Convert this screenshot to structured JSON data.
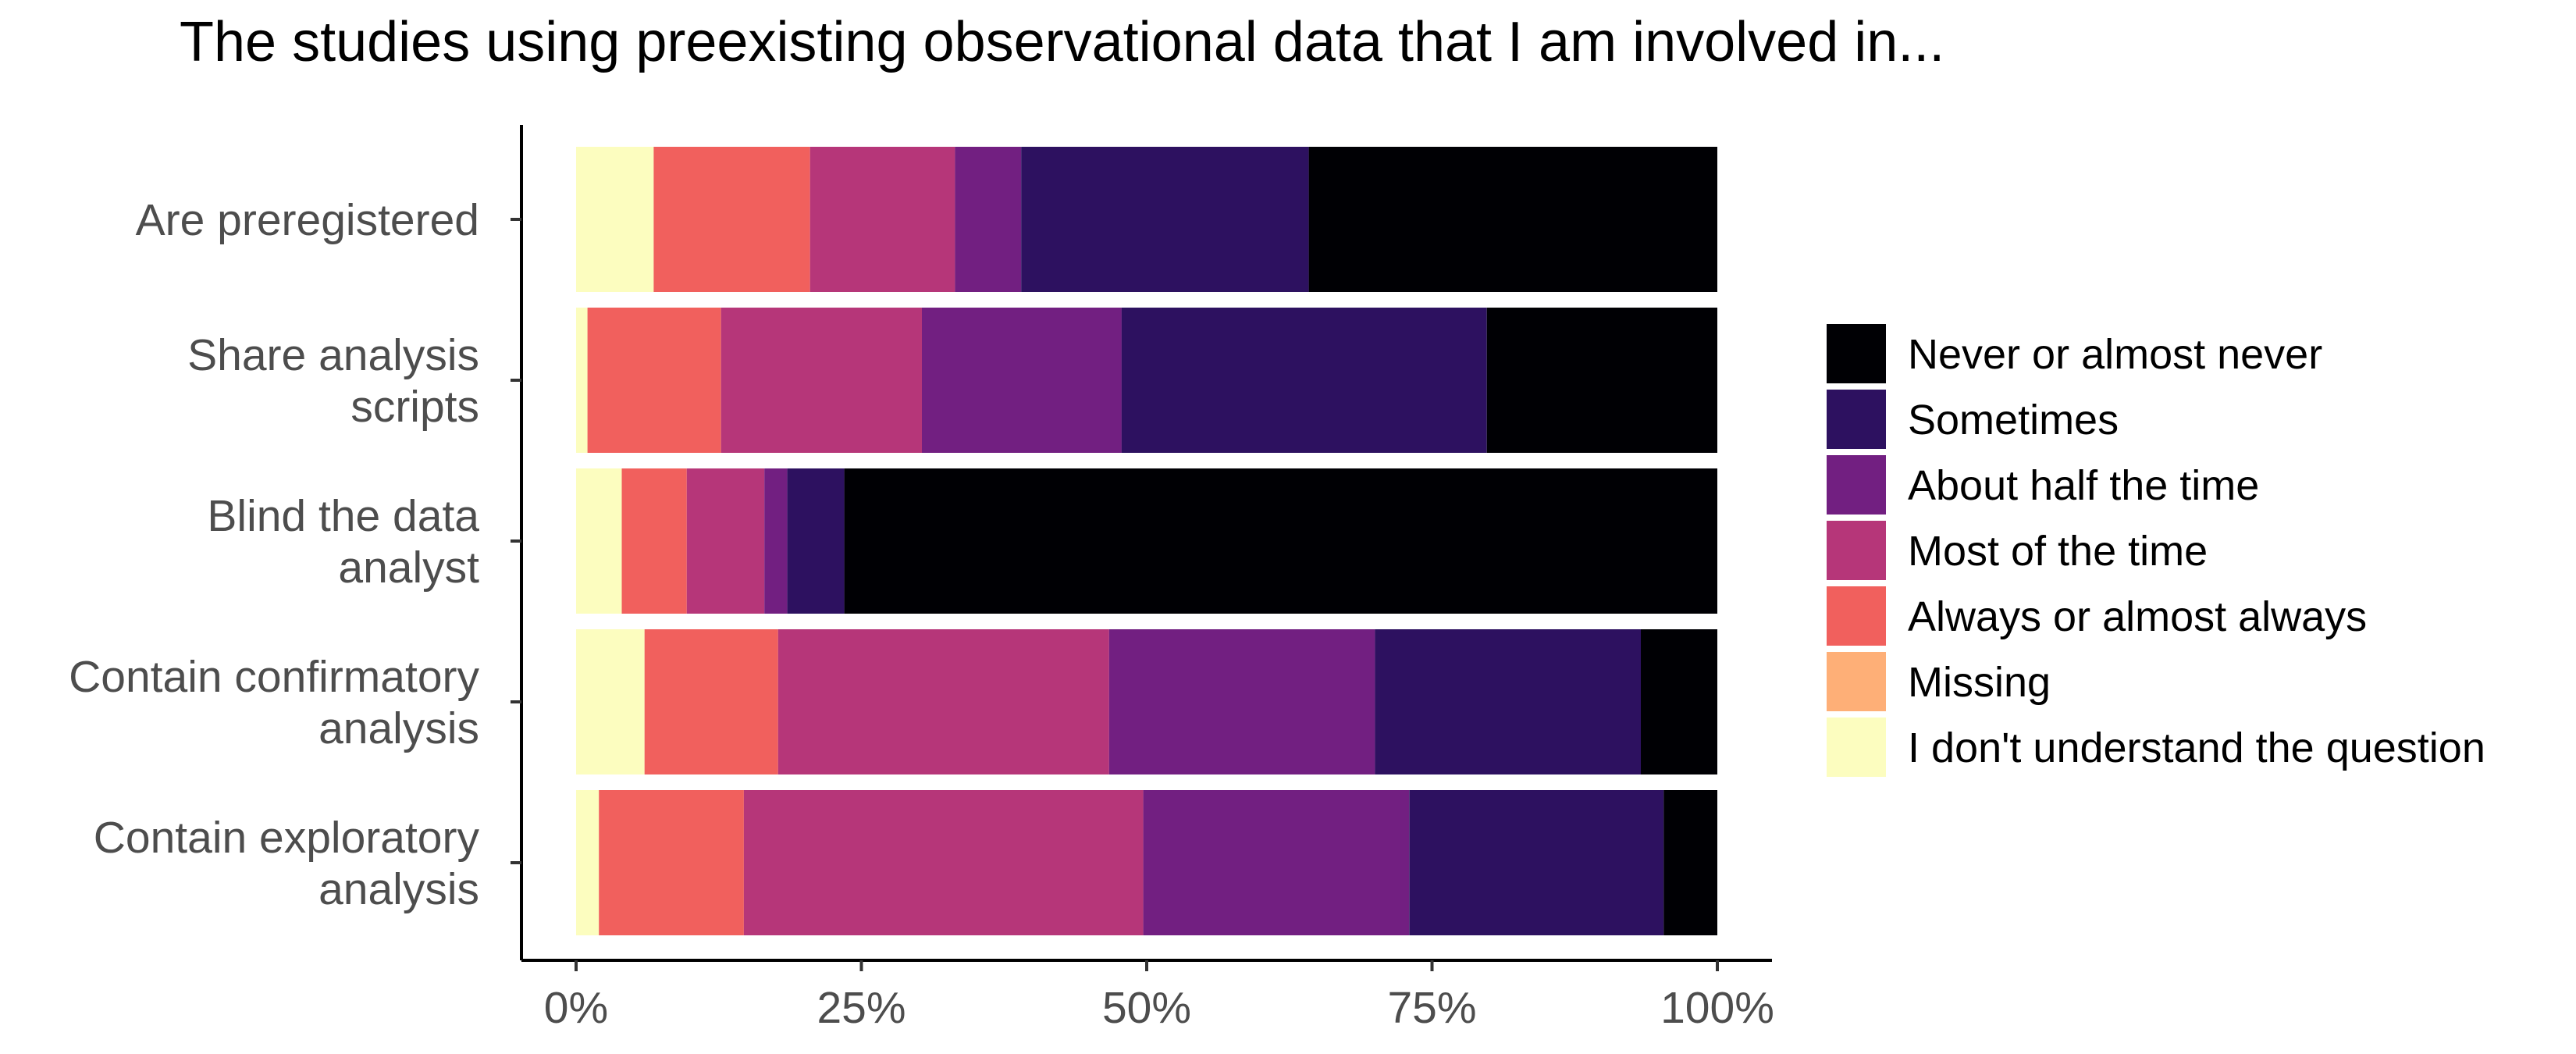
{
  "chart_data": {
    "type": "bar",
    "orientation": "horizontal",
    "stacked": true,
    "title": "The studies using preexisting observational data that I am involved in...",
    "xlabel": "",
    "ylabel": "",
    "xlim": [
      0,
      1
    ],
    "x_ticks": [
      "0%",
      "25%",
      "50%",
      "75%",
      "100%"
    ],
    "x_tick_values": [
      0,
      0.25,
      0.5,
      0.75,
      1.0
    ],
    "categories": [
      [
        "Are preregistered"
      ],
      [
        "Share analysis",
        "scripts"
      ],
      [
        "Blind the data",
        "analyst"
      ],
      [
        "Contain confirmatory",
        "analysis"
      ],
      [
        "Contain exploratory",
        "analysis"
      ]
    ],
    "series": [
      {
        "name": "I don't understand the question",
        "color": "#FCFDBF",
        "values": [
          0.068,
          0.01,
          0.04,
          0.06,
          0.02
        ]
      },
      {
        "name": "Missing",
        "color": "#FEAF77",
        "values": [
          0.0,
          0.0,
          0.0,
          0.0,
          0.0
        ]
      },
      {
        "name": "Always or almost always",
        "color": "#F1605D",
        "values": [
          0.137,
          0.117,
          0.057,
          0.117,
          0.127
        ]
      },
      {
        "name": "Most of the time",
        "color": "#B63679",
        "values": [
          0.127,
          0.176,
          0.068,
          0.29,
          0.35
        ]
      },
      {
        "name": "About half the time",
        "color": "#721F81",
        "values": [
          0.058,
          0.175,
          0.02,
          0.233,
          0.233
        ]
      },
      {
        "name": "Sometimes",
        "color": "#2D1160",
        "values": [
          0.252,
          0.32,
          0.05,
          0.233,
          0.223
        ]
      },
      {
        "name": "Never or almost never",
        "color": "#000004",
        "values": [
          0.358,
          0.202,
          0.765,
          0.067,
          0.047
        ]
      }
    ],
    "legend": {
      "position": "right",
      "order": [
        "Never or almost never",
        "Sometimes",
        "About half the time",
        "Most of the time",
        "Always or almost always",
        "Missing",
        "I don't understand the question"
      ]
    },
    "grid": false
  }
}
